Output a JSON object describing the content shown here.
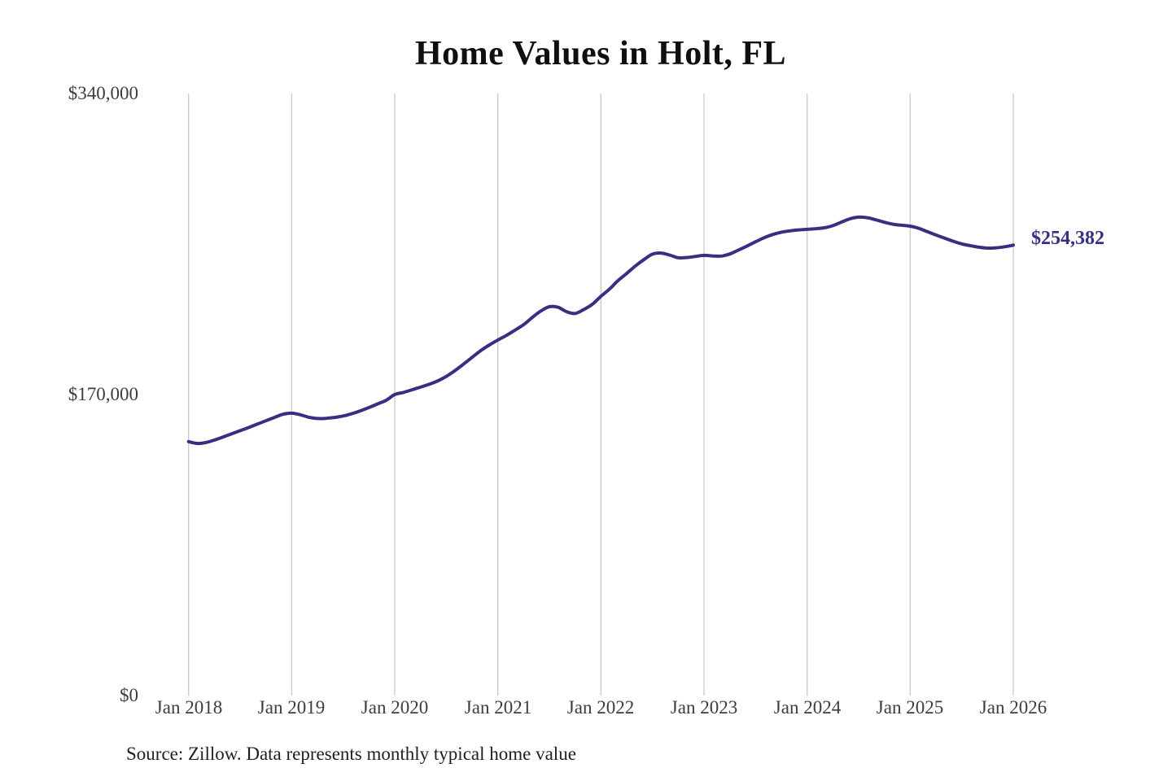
{
  "title": "Home Values in Holt, FL",
  "end_label": "$254,382",
  "source_note": "Source: Zillow. Data represents monthly typical home value",
  "colors": {
    "line": "#363083",
    "grid": "#cacaca",
    "axis_text": "#3d3d3d",
    "title_text": "#0f0f0f",
    "end_label_text": "#363083",
    "source_text": "#1f1f1f",
    "background": "#ffffff"
  },
  "chart_data": {
    "type": "line",
    "title": "Home Values in Holt, FL",
    "xlabel": "",
    "ylabel": "",
    "interval": "monthly",
    "x_start": "Jan 2018",
    "x_end": "Jan 2026",
    "x_ticks": [
      "Jan 2018",
      "Jan 2019",
      "Jan 2020",
      "Jan 2021",
      "Jan 2022",
      "Jan 2023",
      "Jan 2024",
      "Jan 2025",
      "Jan 2026"
    ],
    "y_ticks": [
      "$340,000",
      "$170,000",
      "$0"
    ],
    "y_tick_values": [
      340000,
      170000,
      0
    ],
    "ylim": [
      0,
      340000
    ],
    "grid": "vertical-only",
    "legend": "none",
    "end_value": 254382,
    "series": [
      {
        "name": "Typical home value",
        "values": [
          143400,
          142400,
          142900,
          144300,
          146000,
          147800,
          149600,
          151400,
          153300,
          155200,
          157100,
          158900,
          159500,
          158600,
          157200,
          156500,
          156600,
          157100,
          157900,
          159200,
          160800,
          162700,
          164700,
          166800,
          170000,
          171200,
          172700,
          174200,
          175800,
          177700,
          180300,
          183500,
          187200,
          191000,
          194800,
          198000,
          200800,
          203400,
          206400,
          209500,
          213500,
          217200,
          219600,
          219300,
          216800,
          215800,
          218000,
          221000,
          225500,
          229600,
          234400,
          238400,
          242600,
          246200,
          249300,
          249900,
          248800,
          247300,
          247400,
          248000,
          248600,
          248300,
          248200,
          249400,
          251600,
          253900,
          256300,
          258600,
          260400,
          261700,
          262500,
          263000,
          263300,
          263700,
          264200,
          265400,
          267400,
          269300,
          270200,
          269900,
          268700,
          267300,
          266200,
          265600,
          265100,
          263900,
          262000,
          260100,
          258300,
          256600,
          255100,
          254100,
          253200,
          252700,
          252900,
          253500,
          254382
        ]
      }
    ]
  }
}
